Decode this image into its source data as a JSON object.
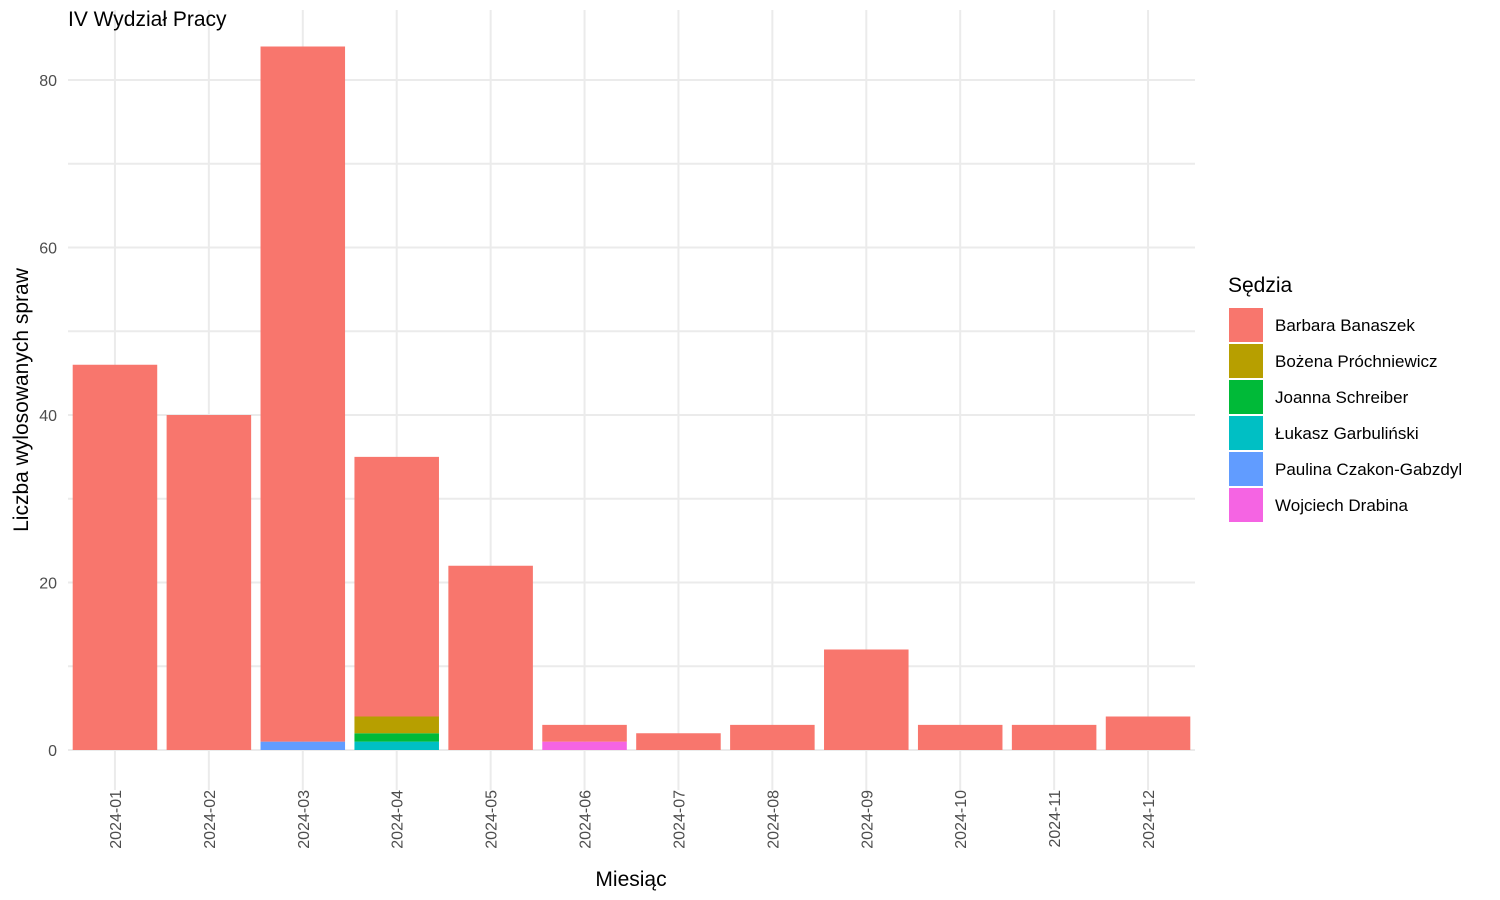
{
  "chart_data": {
    "type": "bar",
    "stacked": true,
    "title": "IV Wydział Pracy",
    "xlabel": "Miesiąc",
    "ylabel": "Liczba wylosowanych spraw",
    "ylim": [
      0,
      86
    ],
    "yticks": [
      0,
      20,
      40,
      60,
      80
    ],
    "grid": true,
    "legend": {
      "title": "Sędzia",
      "position": "right"
    },
    "categories": [
      "2024-01",
      "2024-02",
      "2024-03",
      "2024-04",
      "2024-05",
      "2024-06",
      "2024-07",
      "2024-08",
      "2024-09",
      "2024-10",
      "2024-11",
      "2024-12"
    ],
    "stack_order": [
      "Wojciech Drabina",
      "Paulina Czakon-Gabzdyl",
      "Łukasz Garbuliński",
      "Joanna Schreiber",
      "Bożena Próchniewicz",
      "Barbara Banaszek"
    ],
    "series": [
      {
        "name": "Barbara Banaszek",
        "color": "#F8766D",
        "values": [
          46,
          40,
          83,
          31,
          22,
          2,
          2,
          3,
          12,
          3,
          3,
          4
        ]
      },
      {
        "name": "Bożena Próchniewicz",
        "color": "#B79F00",
        "values": [
          0,
          0,
          0,
          2,
          0,
          0,
          0,
          0,
          0,
          0,
          0,
          0
        ]
      },
      {
        "name": "Joanna Schreiber",
        "color": "#00BA38",
        "values": [
          0,
          0,
          0,
          1,
          0,
          0,
          0,
          0,
          0,
          0,
          0,
          0
        ]
      },
      {
        "name": "Łukasz Garbuliński",
        "color": "#00BFC4",
        "values": [
          0,
          0,
          0,
          1,
          0,
          0,
          0,
          0,
          0,
          0,
          0,
          0
        ]
      },
      {
        "name": "Paulina Czakon-Gabzdyl",
        "color": "#619CFF",
        "values": [
          0,
          0,
          1,
          0,
          0,
          0,
          0,
          0,
          0,
          0,
          0,
          0
        ]
      },
      {
        "name": "Wojciech Drabina",
        "color": "#F564E3",
        "values": [
          0,
          0,
          0,
          0,
          0,
          1,
          0,
          0,
          0,
          0,
          0,
          0
        ]
      }
    ]
  }
}
